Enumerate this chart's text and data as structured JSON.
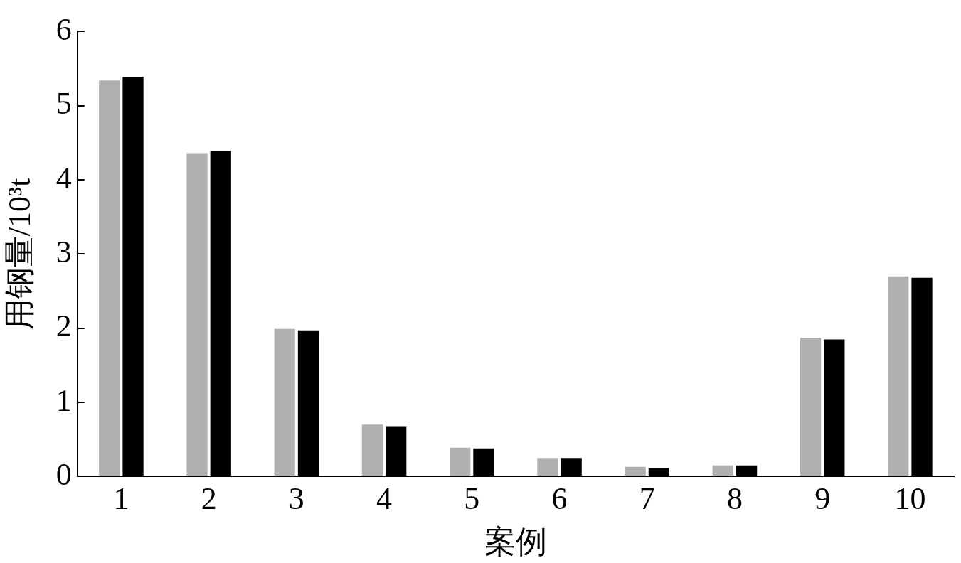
{
  "chart_data": {
    "type": "bar",
    "xlabel": "案例",
    "ylabel": "用钢量/10³t",
    "categories": [
      "1",
      "2",
      "3",
      "4",
      "5",
      "6",
      "7",
      "8",
      "9",
      "10"
    ],
    "series": [
      {
        "color": "#b0b0b0",
        "values": [
          5.34,
          4.36,
          1.99,
          0.7,
          0.39,
          0.25,
          0.13,
          0.15,
          1.87,
          2.7
        ]
      },
      {
        "color": "#000000",
        "values": [
          5.39,
          4.39,
          1.97,
          0.68,
          0.38,
          0.25,
          0.12,
          0.15,
          1.85,
          2.68
        ]
      }
    ],
    "ylim": [
      0,
      6
    ],
    "yticks": [
      0,
      1,
      2,
      3,
      4,
      5,
      6
    ],
    "grid": false,
    "legend": false
  }
}
